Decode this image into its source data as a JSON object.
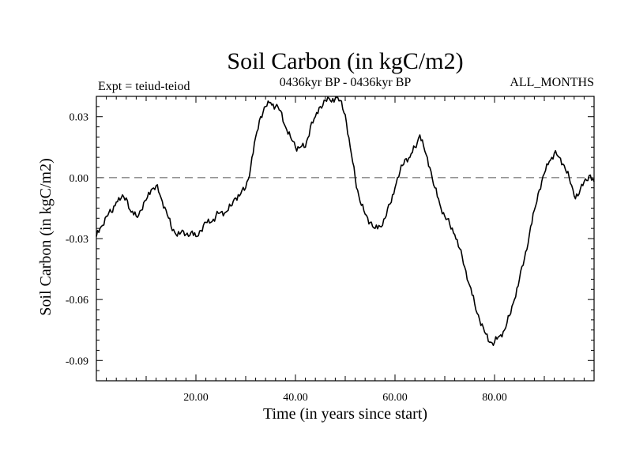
{
  "chart_data": {
    "type": "line",
    "title": "Soil Carbon (in kgC/m2)",
    "subtitle": "0436kyr BP - 0436kyr BP",
    "left_note": "Expt = teiud-teiod",
    "right_note": "ALL_MONTHS",
    "xlabel": "Time (in years since start)",
    "ylabel": "Soil Carbon (in kgC/m2)",
    "xlim": [
      0,
      100
    ],
    "ylim": [
      -0.1,
      0.04
    ],
    "x_ticks": [
      {
        "value": 20,
        "label": "20.00"
      },
      {
        "value": 40,
        "label": "40.00"
      },
      {
        "value": 60,
        "label": "60.00"
      },
      {
        "value": 80,
        "label": "80.00"
      }
    ],
    "y_ticks": [
      {
        "value": 0.03,
        "label": "0.03"
      },
      {
        "value": 0.0,
        "label": "0.00"
      },
      {
        "value": -0.03,
        "label": "-0.03"
      },
      {
        "value": -0.06,
        "label": "-0.06"
      },
      {
        "value": -0.09,
        "label": "-0.09"
      }
    ],
    "reference_line": {
      "y": 0.0,
      "style": "dashed"
    },
    "grid": false,
    "series": [
      {
        "x": [
          0,
          1,
          2,
          3,
          4,
          5,
          6,
          7,
          8,
          9,
          10,
          11,
          12,
          13,
          14,
          15,
          16,
          17,
          18,
          19,
          20,
          21,
          22,
          23,
          24,
          25,
          26,
          27,
          28,
          29,
          30,
          31,
          32,
          33,
          34,
          35,
          36,
          37,
          38,
          39,
          40,
          41,
          42,
          43,
          44,
          45,
          46,
          47,
          48,
          49,
          50,
          51,
          52,
          53,
          54,
          55,
          56,
          57,
          58,
          59,
          60,
          61,
          62,
          63,
          64,
          65,
          66,
          67,
          68,
          69,
          70,
          71,
          72,
          73,
          74,
          75,
          76,
          77,
          78,
          79,
          80,
          81,
          82,
          83,
          84,
          85,
          86,
          87,
          88,
          89,
          90,
          91,
          92,
          93,
          94,
          95,
          96,
          97,
          98,
          99,
          100
        ],
        "y": [
          -0.029,
          -0.024,
          -0.019,
          -0.017,
          -0.012,
          -0.01,
          -0.01,
          -0.017,
          -0.019,
          -0.016,
          -0.011,
          -0.006,
          -0.004,
          -0.01,
          -0.016,
          -0.024,
          -0.028,
          -0.027,
          -0.028,
          -0.027,
          -0.029,
          -0.026,
          -0.022,
          -0.022,
          -0.019,
          -0.017,
          -0.017,
          -0.014,
          -0.01,
          -0.008,
          -0.005,
          0.005,
          0.02,
          0.03,
          0.035,
          0.037,
          0.035,
          0.033,
          0.025,
          0.02,
          0.015,
          0.015,
          0.015,
          0.025,
          0.03,
          0.035,
          0.038,
          0.038,
          0.039,
          0.038,
          0.031,
          0.015,
          0.0,
          -0.012,
          -0.018,
          -0.022,
          -0.025,
          -0.024,
          -0.02,
          -0.013,
          -0.005,
          0.003,
          0.009,
          0.01,
          0.015,
          0.021,
          0.013,
          0.005,
          -0.005,
          -0.013,
          -0.019,
          -0.023,
          -0.028,
          -0.035,
          -0.044,
          -0.053,
          -0.062,
          -0.07,
          -0.076,
          -0.081,
          -0.081,
          -0.078,
          -0.075,
          -0.068,
          -0.06,
          -0.05,
          -0.04,
          -0.028,
          -0.016,
          -0.006,
          0.002,
          0.008,
          0.012,
          0.01,
          0.006,
          0.0,
          -0.009,
          -0.008,
          -0.002,
          0.001,
          -0.002
        ]
      }
    ]
  }
}
